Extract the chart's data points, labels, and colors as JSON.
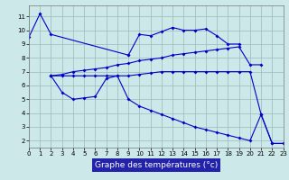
{
  "title": "Graphe des températures (°c)",
  "bg": "#cce8e8",
  "grid_color": "#99bbbb",
  "line_color": "#0000cc",
  "xlim": [
    0,
    23
  ],
  "ylim": [
    1.5,
    11.8
  ],
  "yticks": [
    2,
    3,
    4,
    5,
    6,
    7,
    8,
    9,
    10,
    11
  ],
  "xticks": [
    0,
    1,
    2,
    3,
    4,
    5,
    6,
    7,
    8,
    9,
    10,
    11,
    12,
    13,
    14,
    15,
    16,
    17,
    18,
    19,
    20,
    21,
    22,
    23
  ],
  "curves": [
    {
      "x": [
        0,
        1,
        2,
        9
      ],
      "y": [
        9.5,
        11.2,
        9.7,
        8.2
      ]
    },
    {
      "x": [
        9,
        10,
        11,
        12,
        13,
        14,
        15,
        16,
        17,
        18,
        19
      ],
      "y": [
        8.2,
        9.7,
        9.6,
        9.9,
        10.2,
        10.0,
        10.0,
        10.1,
        9.6,
        9.0,
        9.0
      ]
    },
    {
      "x": [
        2,
        3,
        4,
        5,
        6,
        7,
        8,
        9,
        10,
        11,
        12,
        13,
        14,
        15,
        16,
        17,
        18,
        19,
        20,
        21
      ],
      "y": [
        6.7,
        6.8,
        7.0,
        7.1,
        7.2,
        7.3,
        7.5,
        7.6,
        7.8,
        7.9,
        8.0,
        8.2,
        8.3,
        8.4,
        8.5,
        8.6,
        8.7,
        8.8,
        7.5,
        7.5
      ]
    },
    {
      "x": [
        2,
        3,
        4,
        5,
        6,
        7,
        8,
        9,
        10,
        11,
        12,
        13,
        14,
        15,
        16,
        17,
        18,
        19,
        20,
        21,
        22,
        23
      ],
      "y": [
        6.7,
        6.7,
        6.7,
        6.7,
        6.7,
        6.7,
        6.7,
        6.7,
        6.8,
        6.9,
        7.0,
        7.0,
        7.0,
        7.0,
        7.0,
        7.0,
        7.0,
        7.0,
        7.0,
        3.9,
        1.8,
        1.8
      ]
    },
    {
      "x": [
        2,
        3,
        4,
        5,
        6,
        7,
        8,
        9,
        10,
        11,
        12,
        13,
        14,
        15,
        16,
        17,
        18,
        19,
        20,
        21,
        22,
        23
      ],
      "y": [
        6.7,
        5.5,
        5.0,
        5.1,
        5.2,
        6.5,
        6.7,
        5.0,
        4.5,
        4.2,
        3.9,
        3.6,
        3.3,
        3.0,
        2.8,
        2.6,
        2.4,
        2.2,
        2.0,
        3.9,
        1.8,
        1.8
      ]
    }
  ],
  "xlabel_bg": "#2222aa",
  "xlabel_fontsize": 6.5,
  "tick_fontsize": 5.0,
  "marker": "D",
  "markersize": 2.0,
  "linewidth": 0.8
}
